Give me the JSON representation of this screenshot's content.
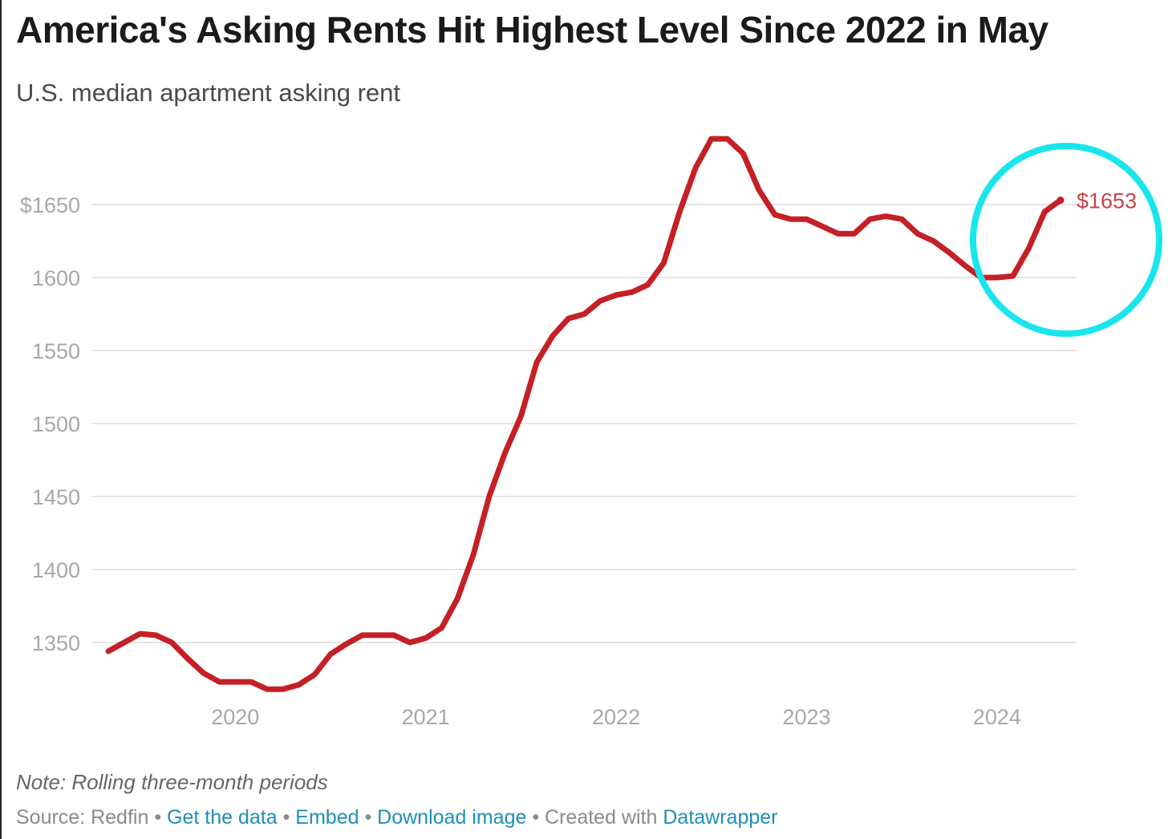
{
  "header": {
    "title": "America's Asking Rents Hit Highest Level Since 2022 in May",
    "subtitle": "U.S. median apartment asking rent"
  },
  "footer": {
    "note": "Note: Rolling three-month periods",
    "source_prefix": "Source: Redfin",
    "get_data_label": "Get the data",
    "embed_label": "Embed",
    "download_label": "Download image",
    "created_prefix": "Created with",
    "datawrapper_label": "Datawrapper",
    "separator": " • "
  },
  "colors": {
    "line": "#c42026",
    "label": "#c8424a",
    "highlight_circle": "#18e6ec",
    "grid": "#e6e6e6",
    "axis_text": "#a8a8a8",
    "link": "#1e8fb8"
  },
  "chart_data": {
    "type": "line",
    "title": "America's Asking Rents Hit Highest Level Since 2022 in May",
    "subtitle": "U.S. median apartment asking rent",
    "xlabel": "",
    "ylabel": "",
    "ylim": [
      1315,
      1700
    ],
    "xlim": [
      "2019-05",
      "2024-05"
    ],
    "y_ticks": [
      {
        "value": 1350,
        "label": "1350"
      },
      {
        "value": 1400,
        "label": "1400"
      },
      {
        "value": 1450,
        "label": "1450"
      },
      {
        "value": 1500,
        "label": "1500"
      },
      {
        "value": 1550,
        "label": "1550"
      },
      {
        "value": 1600,
        "label": "1600"
      },
      {
        "value": 1650,
        "label": "$1650"
      }
    ],
    "x_ticks": [
      {
        "value": "2020-01",
        "label": "2020"
      },
      {
        "value": "2021-01",
        "label": "2021"
      },
      {
        "value": "2022-01",
        "label": "2022"
      },
      {
        "value": "2023-01",
        "label": "2023"
      },
      {
        "value": "2024-01",
        "label": "2024"
      }
    ],
    "grid": true,
    "series": [
      {
        "x": [
          "2019-05",
          "2019-06",
          "2019-07",
          "2019-08",
          "2019-09",
          "2019-10",
          "2019-11",
          "2019-12",
          "2020-01",
          "2020-02",
          "2020-03",
          "2020-04",
          "2020-05",
          "2020-06",
          "2020-07",
          "2020-08",
          "2020-09",
          "2020-10",
          "2020-11",
          "2020-12",
          "2021-01",
          "2021-02",
          "2021-03",
          "2021-04",
          "2021-05",
          "2021-06",
          "2021-07",
          "2021-08",
          "2021-09",
          "2021-10",
          "2021-11",
          "2021-12",
          "2022-01",
          "2022-02",
          "2022-03",
          "2022-04",
          "2022-05",
          "2022-06",
          "2022-07",
          "2022-08",
          "2022-09",
          "2022-10",
          "2022-11",
          "2022-12",
          "2023-01",
          "2023-02",
          "2023-03",
          "2023-04",
          "2023-05",
          "2023-06",
          "2023-07",
          "2023-08",
          "2023-09",
          "2023-10",
          "2023-11",
          "2023-12",
          "2024-01",
          "2024-02",
          "2024-03",
          "2024-04",
          "2024-05"
        ],
        "values": [
          1344,
          1350,
          1356,
          1355,
          1350,
          1339,
          1329,
          1323,
          1323,
          1323,
          1318,
          1318,
          1321,
          1328,
          1342,
          1349,
          1355,
          1355,
          1355,
          1350,
          1353,
          1360,
          1380,
          1410,
          1450,
          1480,
          1505,
          1542,
          1560,
          1572,
          1575,
          1584,
          1588,
          1590,
          1595,
          1610,
          1645,
          1675,
          1695,
          1695,
          1685,
          1660,
          1643,
          1640,
          1640,
          1635,
          1630,
          1630,
          1640,
          1642,
          1640,
          1630,
          1625,
          1617,
          1608,
          1600,
          1600,
          1601,
          1620,
          1645,
          1653
        ]
      }
    ],
    "annotations": [
      {
        "x": "2024-05",
        "y": 1653,
        "text": "$1653"
      }
    ],
    "highlight": {
      "type": "circle",
      "around": "2024 endpoint",
      "color": "#18e6ec"
    }
  }
}
